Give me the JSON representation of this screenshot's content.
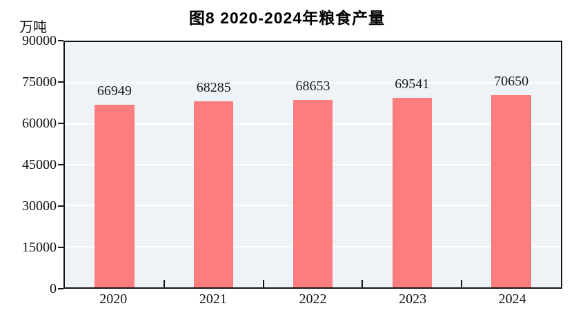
{
  "title": "图8  2020-2024年粮食产量",
  "unit_label": "万吨",
  "colors": {
    "bar_fill": "#fb7d7d",
    "plot_background": "#edf3f7",
    "axis_border": "#141414",
    "gridline": "#ffffff",
    "text": "#111111"
  },
  "chart_data": {
    "type": "bar",
    "title": "图8  2020-2024年粮食产量",
    "categories": [
      "2020",
      "2021",
      "2022",
      "2023",
      "2024"
    ],
    "values": [
      66949,
      68285,
      68653,
      69541,
      70650
    ],
    "bar_labels": [
      66949,
      68285,
      68653,
      69541,
      70650
    ],
    "xlabel": "",
    "ylabel": "万吨",
    "ylim": [
      0,
      90000
    ],
    "yticks": [
      0,
      15000,
      30000,
      45000,
      60000,
      75000,
      90000
    ],
    "grid": true,
    "gridline_orientation": "horizontal",
    "legend": false,
    "bar_width_fraction": 0.4
  }
}
